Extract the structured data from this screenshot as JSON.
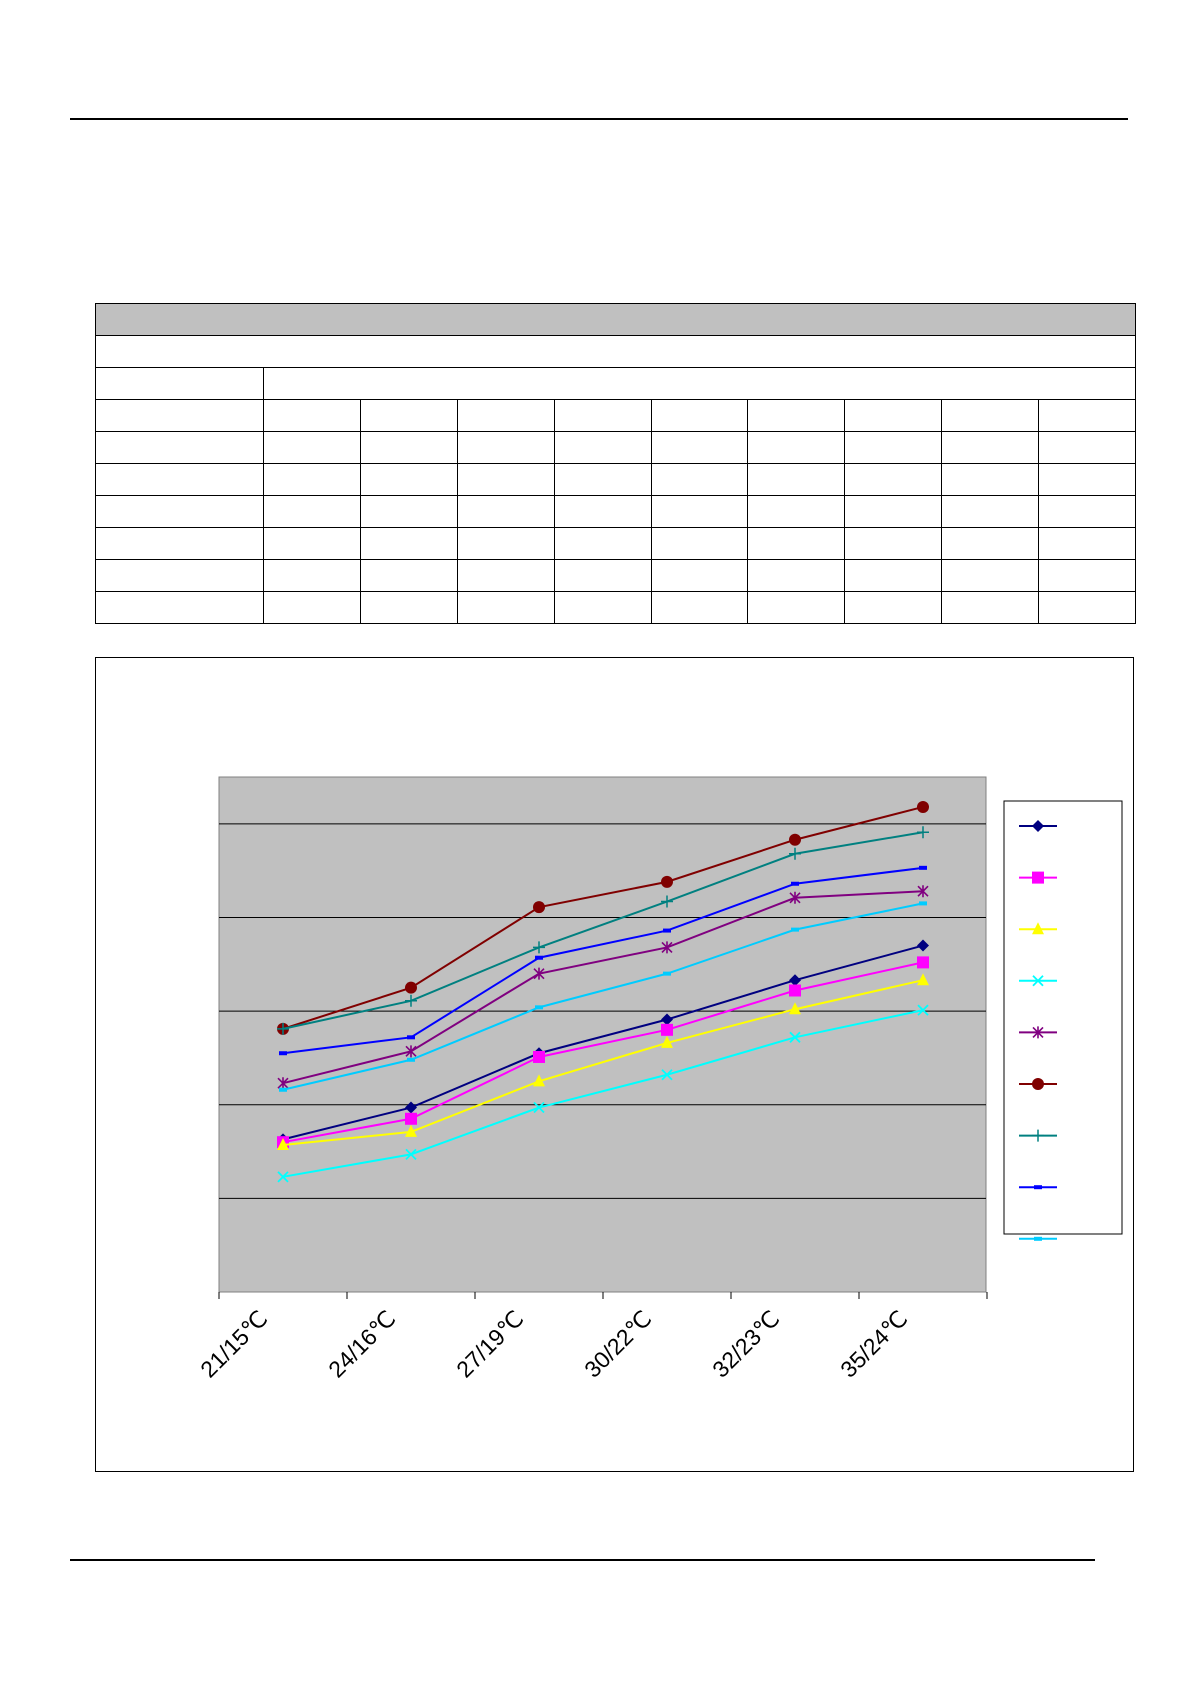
{
  "table": {
    "rows": 10,
    "value_columns": 9
  },
  "chart_data": {
    "type": "line",
    "categories": [
      "21/15℃",
      "24/16℃",
      "27/19℃",
      "30/22℃",
      "32/23℃",
      "35/24℃"
    ],
    "ylim": [
      0,
      5.5
    ],
    "grid": true,
    "legend_position": "right",
    "series": [
      {
        "values": [
          1.63,
          1.97,
          2.55,
          2.91,
          3.33,
          3.7
        ],
        "color": "#000080",
        "marker": "diamond"
      },
      {
        "values": [
          1.6,
          1.85,
          2.51,
          2.8,
          3.22,
          3.52
        ],
        "color": "#ff00ff",
        "marker": "square"
      },
      {
        "values": [
          1.57,
          1.71,
          2.25,
          2.66,
          3.02,
          3.33
        ],
        "color": "#ffff00",
        "marker": "triangle"
      },
      {
        "values": [
          1.23,
          1.47,
          1.97,
          2.32,
          2.72,
          3.01
        ],
        "color": "#00ffff",
        "marker": "x"
      },
      {
        "values": [
          2.23,
          2.57,
          3.4,
          3.68,
          4.21,
          4.28
        ],
        "color": "#800080",
        "marker": "star"
      },
      {
        "values": [
          2.81,
          3.25,
          4.11,
          4.38,
          4.83,
          5.18
        ],
        "color": "#800000",
        "marker": "circle"
      },
      {
        "values": [
          2.81,
          3.11,
          3.68,
          4.17,
          4.68,
          4.91
        ],
        "color": "#008080",
        "marker": "plus"
      },
      {
        "values": [
          2.55,
          2.72,
          3.57,
          3.86,
          4.36,
          4.53
        ],
        "color": "#0000ff",
        "marker": "dash"
      },
      {
        "values": [
          2.16,
          2.48,
          3.04,
          3.4,
          3.87,
          4.15
        ],
        "color": "#00ccff",
        "marker": "dash"
      }
    ]
  }
}
